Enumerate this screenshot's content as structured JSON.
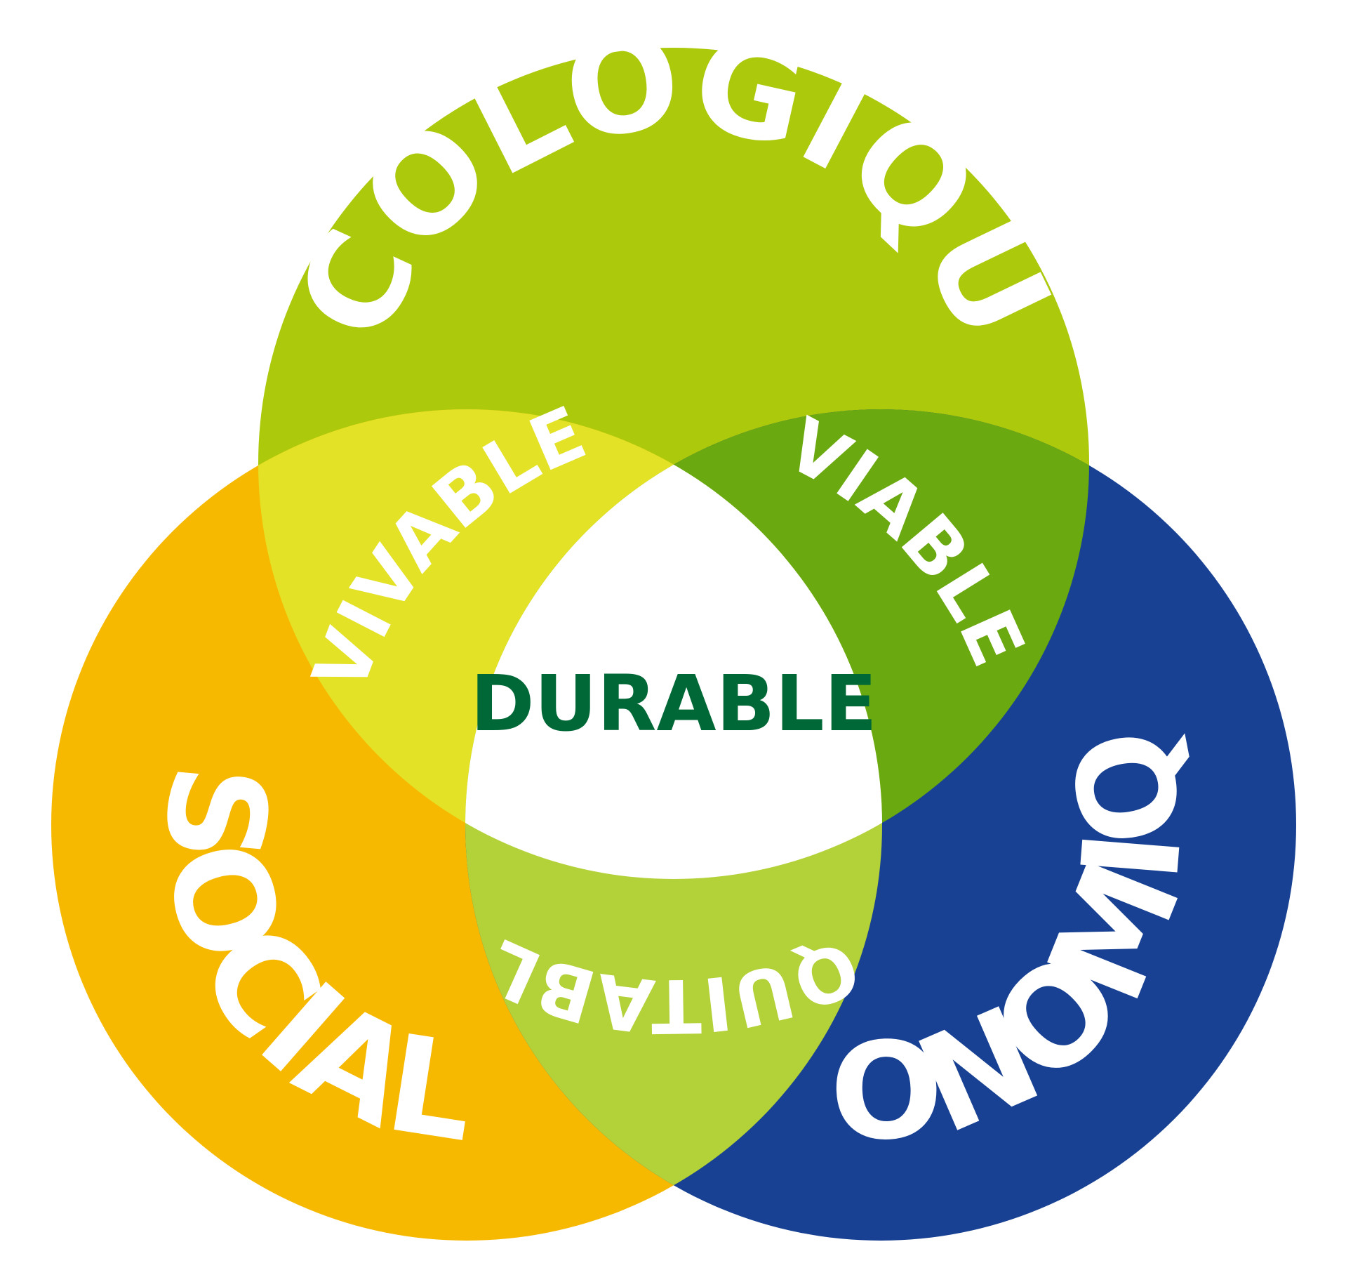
{
  "diagram": {
    "circles": {
      "ecologique": {
        "label": "ÉCOLOGIQUE",
        "color": "#adc90b"
      },
      "social": {
        "label": "SOCIAL",
        "color": "#f6b900"
      },
      "economique": {
        "label": "ÉCONOMIQUE",
        "color": "#184193"
      }
    },
    "overlaps": {
      "vivable": {
        "label": "VIVABLE",
        "color": "#e3e227"
      },
      "viable": {
        "label": "VIABLE",
        "color": "#6aa910"
      },
      "equitable": {
        "label": "ÉQUITABLE",
        "color": "#b3d138"
      }
    },
    "center": {
      "label": "DURABLE",
      "text_color": "#006837",
      "fill": "#ffffff"
    },
    "label_color": "#ffffff"
  }
}
